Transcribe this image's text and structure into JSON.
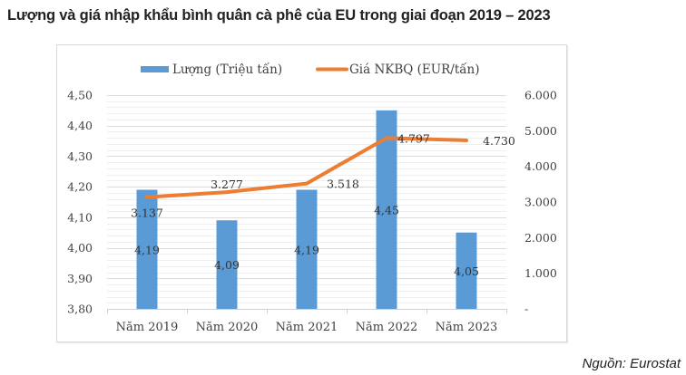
{
  "title": "Lượng và giá nhập khẩu bình quân cà phê của EU trong giai đoạn 2019 – 2023",
  "source": "Nguồn: Eurostat",
  "colors": {
    "bar": "#5b9bd5",
    "line": "#ed7d31",
    "grid": "#e7e7e7",
    "text": "#404040"
  },
  "chart_data": {
    "type": "bar+line",
    "title": "Lượng và giá nhập khẩu bình quân cà phê của EU trong giai đoạn 2019 – 2023",
    "categories": [
      "Năm 2019",
      "Năm 2020",
      "Năm 2021",
      "Năm 2022",
      "Năm 2023"
    ],
    "series": [
      {
        "name": "Lượng (Triệu tấn)",
        "type": "bar",
        "axis": "left",
        "values": [
          4.19,
          4.09,
          4.19,
          4.45,
          4.05
        ],
        "labels": [
          "4,19",
          "4,09",
          "4,19",
          "4,45",
          "4,05"
        ]
      },
      {
        "name": "Giá NKBQ (EUR/tấn)",
        "type": "line",
        "axis": "right",
        "values": [
          3137,
          3277,
          3518,
          4797,
          4730
        ],
        "labels": [
          "3.137",
          "3.277",
          "3.518",
          "4.797",
          "4.730"
        ]
      }
    ],
    "y_left": {
      "range": [
        3.8,
        4.5
      ],
      "ticks": [
        3.8,
        3.9,
        4.0,
        4.1,
        4.2,
        4.3,
        4.4,
        4.5
      ],
      "tick_labels": [
        "3,80",
        "3,90",
        "4,00",
        "4,10",
        "4,20",
        "4,30",
        "4,40",
        "4,50"
      ]
    },
    "y_right": {
      "range": [
        0,
        6000
      ],
      "ticks": [
        0,
        1000,
        2000,
        3000,
        4000,
        5000,
        6000
      ],
      "tick_labels": [
        "-",
        "1.000",
        "2.000",
        "3.000",
        "4.000",
        "5.000",
        "6.000"
      ]
    },
    "legend": {
      "position": "top"
    },
    "grid": true,
    "xlabel": "",
    "ylabel": ""
  }
}
